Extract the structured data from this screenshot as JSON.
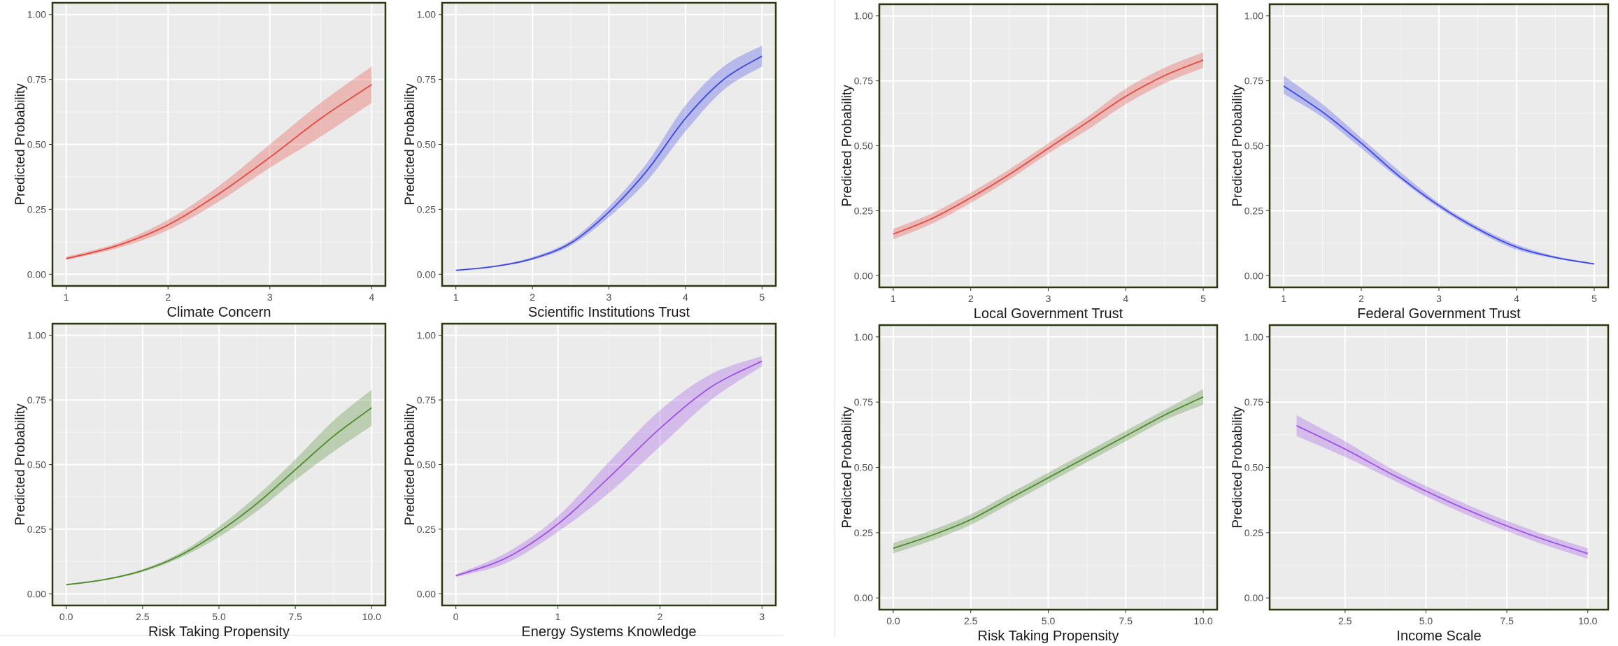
{
  "chart_data": [
    {
      "type": "line",
      "xlabel": "Climate Concern",
      "ylabel": "Predicted Probability",
      "xlim": [
        1,
        4
      ],
      "ylim": [
        0,
        1
      ],
      "xticks": [
        "1",
        "2",
        "3",
        "4"
      ],
      "yticks": [
        "0.00",
        "0.25",
        "0.50",
        "0.75",
        "1.00"
      ],
      "color": "#e8473d",
      "x": [
        1,
        1.5,
        2,
        2.5,
        3,
        3.5,
        4
      ],
      "y": [
        0.06,
        0.11,
        0.19,
        0.31,
        0.45,
        0.6,
        0.73
      ],
      "lower": [
        0.055,
        0.1,
        0.17,
        0.28,
        0.41,
        0.53,
        0.66
      ],
      "upper": [
        0.068,
        0.12,
        0.21,
        0.34,
        0.5,
        0.66,
        0.8
      ]
    },
    {
      "type": "line",
      "xlabel": "Scientific Institutions Trust",
      "ylabel": "Predicted Probability",
      "xlim": [
        1,
        5
      ],
      "ylim": [
        0,
        1
      ],
      "xticks": [
        "1",
        "2",
        "3",
        "4",
        "5"
      ],
      "yticks": [
        "0.00",
        "0.25",
        "0.50",
        "0.75",
        "1.00"
      ],
      "color": "#3b46e8",
      "x": [
        1,
        1.5,
        2,
        2.5,
        3,
        3.5,
        4,
        4.5,
        5
      ],
      "y": [
        0.015,
        0.03,
        0.06,
        0.12,
        0.24,
        0.4,
        0.6,
        0.75,
        0.84
      ],
      "lower": [
        0.013,
        0.028,
        0.055,
        0.11,
        0.22,
        0.36,
        0.55,
        0.71,
        0.8
      ],
      "upper": [
        0.017,
        0.033,
        0.066,
        0.13,
        0.26,
        0.43,
        0.65,
        0.8,
        0.88
      ]
    },
    {
      "type": "line",
      "xlabel": "Local Government Trust",
      "ylabel": "Predicted Probability",
      "xlim": [
        1,
        5
      ],
      "ylim": [
        0,
        1
      ],
      "xticks": [
        "1",
        "2",
        "3",
        "4",
        "5"
      ],
      "yticks": [
        "0.00",
        "0.25",
        "0.50",
        "0.75",
        "1.00"
      ],
      "color": "#e8473d",
      "x": [
        1,
        1.5,
        2,
        2.5,
        3,
        3.5,
        4,
        4.5,
        5
      ],
      "y": [
        0.16,
        0.22,
        0.3,
        0.39,
        0.49,
        0.59,
        0.69,
        0.77,
        0.83
      ],
      "lower": [
        0.14,
        0.2,
        0.28,
        0.37,
        0.47,
        0.56,
        0.66,
        0.74,
        0.8
      ],
      "upper": [
        0.18,
        0.24,
        0.32,
        0.41,
        0.51,
        0.61,
        0.72,
        0.8,
        0.86
      ]
    },
    {
      "type": "line",
      "xlabel": "Federal Government Trust",
      "ylabel": "Predicted Probability",
      "xlim": [
        1,
        5
      ],
      "ylim": [
        0,
        1
      ],
      "xticks": [
        "1",
        "2",
        "3",
        "4",
        "5"
      ],
      "yticks": [
        "0.00",
        "0.25",
        "0.50",
        "0.75",
        "1.00"
      ],
      "color": "#3b46e8",
      "x": [
        1,
        1.5,
        2,
        2.5,
        3,
        3.5,
        4,
        4.5,
        5
      ],
      "y": [
        0.73,
        0.63,
        0.51,
        0.38,
        0.27,
        0.18,
        0.11,
        0.07,
        0.045
      ],
      "lower": [
        0.7,
        0.61,
        0.49,
        0.37,
        0.26,
        0.17,
        0.1,
        0.066,
        0.042
      ],
      "upper": [
        0.77,
        0.66,
        0.53,
        0.4,
        0.28,
        0.19,
        0.12,
        0.075,
        0.048
      ]
    },
    {
      "type": "line",
      "xlabel": "Risk Taking Propensity",
      "ylabel": "Predicted Probability",
      "xlim": [
        0,
        10
      ],
      "ylim": [
        0,
        1
      ],
      "xticks": [
        "0.0",
        "2.5",
        "5.0",
        "7.5",
        "10.0"
      ],
      "yticks": [
        "0.00",
        "0.25",
        "0.50",
        "0.75",
        "1.00"
      ],
      "color": "#4c8c2b",
      "x": [
        0,
        1.25,
        2.5,
        3.75,
        5,
        6.25,
        7.5,
        8.75,
        10
      ],
      "y": [
        0.035,
        0.055,
        0.09,
        0.15,
        0.24,
        0.35,
        0.48,
        0.61,
        0.72
      ],
      "lower": [
        0.032,
        0.052,
        0.085,
        0.14,
        0.22,
        0.32,
        0.44,
        0.55,
        0.65
      ],
      "upper": [
        0.038,
        0.058,
        0.095,
        0.16,
        0.26,
        0.38,
        0.52,
        0.67,
        0.79
      ]
    },
    {
      "type": "line",
      "xlabel": "Energy Systems Knowledge",
      "ylabel": "Predicted Probability",
      "xlim": [
        0,
        3
      ],
      "ylim": [
        0,
        1
      ],
      "xticks": [
        "0",
        "1",
        "2",
        "3"
      ],
      "yticks": [
        "0.00",
        "0.25",
        "0.50",
        "0.75",
        "1.00"
      ],
      "color": "#a04ee8",
      "x": [
        0,
        0.5,
        1,
        1.5,
        2,
        2.5,
        3
      ],
      "y": [
        0.07,
        0.14,
        0.27,
        0.45,
        0.64,
        0.8,
        0.9
      ],
      "lower": [
        0.065,
        0.12,
        0.24,
        0.39,
        0.57,
        0.75,
        0.88
      ],
      "upper": [
        0.075,
        0.16,
        0.3,
        0.51,
        0.71,
        0.85,
        0.92
      ]
    },
    {
      "type": "line",
      "xlabel": "Risk Taking Propensity",
      "ylabel": "Predicted Probability",
      "xlim": [
        0,
        10
      ],
      "ylim": [
        0,
        1
      ],
      "xticks": [
        "0.0",
        "2.5",
        "5.0",
        "7.5",
        "10.0"
      ],
      "yticks": [
        "0.00",
        "0.25",
        "0.50",
        "0.75",
        "1.00"
      ],
      "color": "#4c8c2b",
      "x": [
        0,
        1.25,
        2.5,
        3.75,
        5,
        6.25,
        7.5,
        8.75,
        10
      ],
      "y": [
        0.19,
        0.24,
        0.3,
        0.38,
        0.46,
        0.54,
        0.62,
        0.7,
        0.77
      ],
      "lower": [
        0.17,
        0.22,
        0.28,
        0.36,
        0.44,
        0.52,
        0.6,
        0.68,
        0.74
      ],
      "upper": [
        0.21,
        0.26,
        0.32,
        0.4,
        0.48,
        0.56,
        0.64,
        0.72,
        0.8
      ]
    },
    {
      "type": "line",
      "xlabel": "Income Scale",
      "ylabel": "Predicted Probability",
      "xlim": [
        0.6,
        10.2
      ],
      "ylim": [
        0,
        1
      ],
      "xticks": [
        "2.5",
        "5.0",
        "7.5",
        "10.0"
      ],
      "xtick_values": [
        2.5,
        5,
        7.5,
        10
      ],
      "yticks": [
        "0.00",
        "0.25",
        "0.50",
        "0.75",
        "1.00"
      ],
      "color": "#a04ee8",
      "x": [
        1,
        2.5,
        4,
        5.5,
        7,
        8.5,
        10
      ],
      "y": [
        0.66,
        0.57,
        0.47,
        0.38,
        0.3,
        0.23,
        0.17
      ],
      "lower": [
        0.62,
        0.54,
        0.45,
        0.36,
        0.28,
        0.21,
        0.15
      ],
      "upper": [
        0.7,
        0.6,
        0.49,
        0.4,
        0.32,
        0.25,
        0.19
      ]
    }
  ]
}
